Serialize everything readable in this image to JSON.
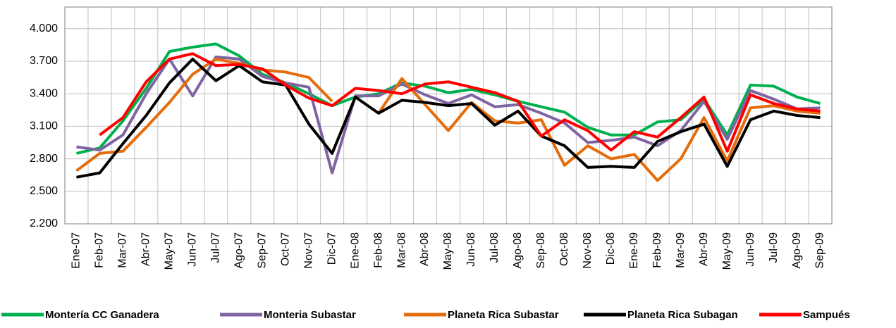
{
  "chart_data": {
    "type": "line",
    "categories": [
      "Ene-07",
      "Feb-07",
      "Mar-07",
      "Abr-07",
      "May-07",
      "Jun-07",
      "Jul-07",
      "Ago-07",
      "Sep-07",
      "Oct-07",
      "Nov-07",
      "Dic-07",
      "Ene-08",
      "Feb-08",
      "Mar-08",
      "Abr-08",
      "May-08",
      "Jun-08",
      "Jul-08",
      "Ago-08",
      "Sep-08",
      "Oct-08",
      "Nov-08",
      "Dic-08",
      "Ene-09",
      "Feb-09",
      "Mar-09",
      "Abr-09",
      "May-09",
      "Jun-09",
      "Jul-09",
      "Ago-09",
      "Sep-09"
    ],
    "series": [
      {
        "name": "Montería CC Ganadera",
        "color": "#00b050",
        "values": [
          2850,
          2900,
          3150,
          3450,
          3790,
          3830,
          3860,
          3750,
          3580,
          3500,
          3400,
          3290,
          3370,
          3400,
          3500,
          3470,
          3410,
          3440,
          3390,
          3330,
          3280,
          3230,
          3090,
          3020,
          3020,
          3140,
          3160,
          3350,
          3020,
          3480,
          3470,
          3370,
          3310
        ]
      },
      {
        "name": "Monteria Subastar",
        "color": "#8064a2",
        "values": [
          2910,
          2880,
          3020,
          3400,
          3720,
          3380,
          3740,
          3720,
          3560,
          3500,
          3460,
          2670,
          3380,
          3380,
          3490,
          3390,
          3310,
          3390,
          3280,
          3300,
          3220,
          3130,
          2950,
          2970,
          3000,
          2920,
          3060,
          3330,
          2980,
          3430,
          3350,
          3260,
          3270
        ]
      },
      {
        "name": "Planeta Rica Subastar",
        "color": "#e46c0a",
        "values": [
          2690,
          2850,
          2870,
          3090,
          3320,
          3580,
          3720,
          3680,
          3620,
          3600,
          3550,
          3330,
          null,
          3220,
          3540,
          3300,
          3060,
          3320,
          3150,
          3130,
          3160,
          2740,
          2920,
          2800,
          2840,
          2600,
          2800,
          3180,
          2780,
          3270,
          3290,
          3240,
          3220
        ]
      },
      {
        "name": "Planeta Rica Subagan",
        "color": "#000000",
        "values": [
          2630,
          2670,
          2940,
          3200,
          3500,
          3720,
          3520,
          3660,
          3510,
          3480,
          3120,
          2850,
          3370,
          3220,
          3340,
          3320,
          3290,
          3310,
          3110,
          3240,
          3010,
          2920,
          2720,
          2730,
          2720,
          2960,
          3050,
          3120,
          2730,
          3160,
          3240,
          3200,
          3180
        ]
      },
      {
        "name": "Sampués",
        "color": "#ff0000",
        "values": [
          null,
          3020,
          3180,
          3510,
          3720,
          3770,
          3660,
          3670,
          3630,
          3480,
          3360,
          3290,
          3450,
          3430,
          3400,
          3490,
          3510,
          3460,
          3410,
          3330,
          3010,
          3160,
          3060,
          2880,
          3050,
          3000,
          3180,
          3370,
          2870,
          3390,
          3310,
          3260,
          3240
        ]
      }
    ],
    "ylim": [
      2200,
      4200
    ],
    "yticks": [
      {
        "value": 2200,
        "label": "2.200"
      },
      {
        "value": 2500,
        "label": "2.500"
      },
      {
        "value": 2800,
        "label": "2.800"
      },
      {
        "value": 3100,
        "label": "3.100"
      },
      {
        "value": 3400,
        "label": "3.400"
      },
      {
        "value": 3700,
        "label": "3.700"
      },
      {
        "value": 4000,
        "label": "4.000"
      }
    ],
    "grid": true
  }
}
